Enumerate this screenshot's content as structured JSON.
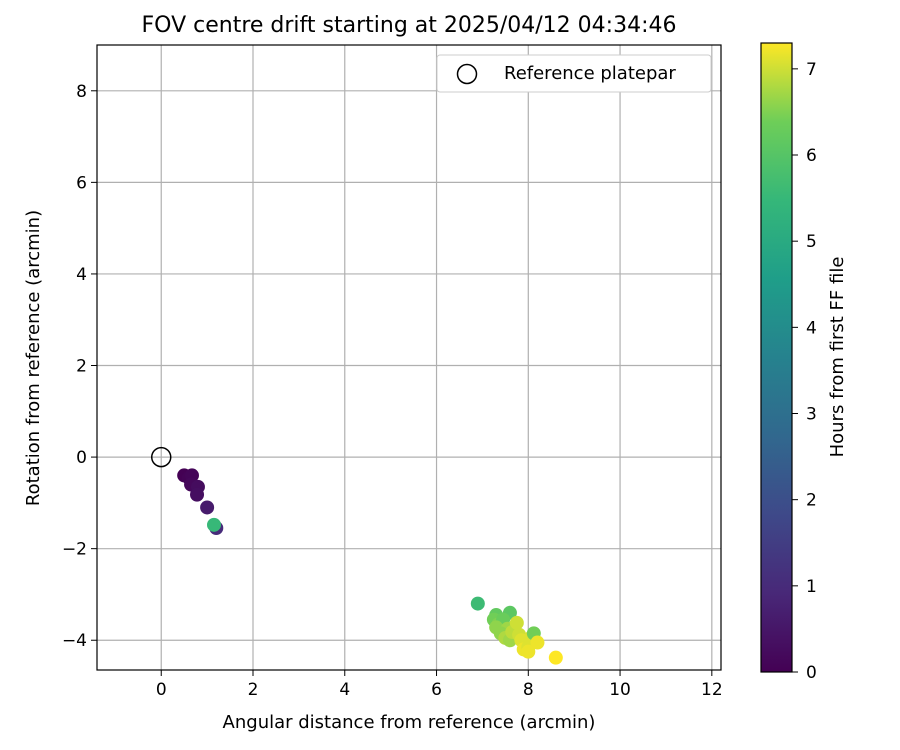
{
  "chart_data": {
    "type": "scatter",
    "title": "FOV centre drift starting at 2025/04/12 04:34:46",
    "xlabel": "Angular distance from reference (arcmin)",
    "ylabel": "Rotation from reference (arcmin)",
    "xlim": [
      -1.4,
      12.2
    ],
    "ylim": [
      -4.65,
      9.0
    ],
    "xticks": [
      0,
      2,
      4,
      6,
      8,
      10,
      12
    ],
    "yticks": [
      -4,
      -2,
      0,
      2,
      4,
      6,
      8
    ],
    "grid": true,
    "legend": {
      "placement": "top-right",
      "entries": [
        "Reference platepar"
      ]
    },
    "reference_point": {
      "x": 0,
      "y": 0
    },
    "colorbar": {
      "label": "Hours from first FF file",
      "range": [
        0,
        7.3
      ],
      "ticks": [
        0,
        1,
        2,
        3,
        4,
        5,
        6,
        7
      ],
      "colormap": "viridis"
    },
    "points": [
      {
        "x": 0.5,
        "y": -0.4,
        "h": 0.0
      },
      {
        "x": 0.6,
        "y": -0.45,
        "h": 0.05
      },
      {
        "x": 0.67,
        "y": -0.4,
        "h": 0.1
      },
      {
        "x": 0.65,
        "y": -0.6,
        "h": 0.15
      },
      {
        "x": 0.8,
        "y": -0.65,
        "h": 0.25
      },
      {
        "x": 0.78,
        "y": -0.82,
        "h": 0.3
      },
      {
        "x": 1.0,
        "y": -1.1,
        "h": 0.6
      },
      {
        "x": 1.2,
        "y": -1.55,
        "h": 1.0
      },
      {
        "x": 1.15,
        "y": -1.48,
        "h": 5.5
      },
      {
        "x": 6.9,
        "y": -3.2,
        "h": 5.6
      },
      {
        "x": 7.3,
        "y": -3.45,
        "h": 6.2
      },
      {
        "x": 7.6,
        "y": -3.4,
        "h": 6.1
      },
      {
        "x": 7.25,
        "y": -3.55,
        "h": 6.4
      },
      {
        "x": 7.35,
        "y": -3.65,
        "h": 6.5
      },
      {
        "x": 7.45,
        "y": -3.55,
        "h": 6.3
      },
      {
        "x": 7.3,
        "y": -3.72,
        "h": 6.6
      },
      {
        "x": 7.55,
        "y": -3.75,
        "h": 6.7
      },
      {
        "x": 7.4,
        "y": -3.85,
        "h": 6.6
      },
      {
        "x": 7.5,
        "y": -3.95,
        "h": 6.8
      },
      {
        "x": 7.6,
        "y": -4.0,
        "h": 6.7
      },
      {
        "x": 7.65,
        "y": -3.82,
        "h": 6.9
      },
      {
        "x": 7.75,
        "y": -3.62,
        "h": 7.0
      },
      {
        "x": 7.8,
        "y": -3.88,
        "h": 7.0
      },
      {
        "x": 7.85,
        "y": -4.0,
        "h": 7.1
      },
      {
        "x": 7.9,
        "y": -4.2,
        "h": 7.2
      },
      {
        "x": 8.0,
        "y": -4.15,
        "h": 7.1
      },
      {
        "x": 8.05,
        "y": -3.95,
        "h": 7.1
      },
      {
        "x": 8.12,
        "y": -3.85,
        "h": 6.4
      },
      {
        "x": 8.2,
        "y": -4.05,
        "h": 7.2
      },
      {
        "x": 8.0,
        "y": -4.25,
        "h": 7.2
      },
      {
        "x": 8.6,
        "y": -4.38,
        "h": 7.3
      }
    ]
  }
}
